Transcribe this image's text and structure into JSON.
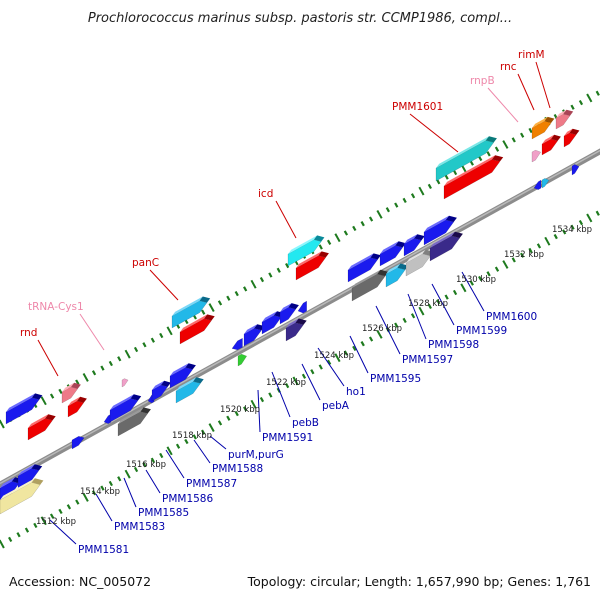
{
  "title": "Prochlorococcus marinus subsp. pastoris str. CCMP1986, compl...",
  "footer": {
    "accession": "Accession: NC_005072",
    "topology": "Topology: circular; Length: 1,657,990 bp; Genes: 1,761"
  },
  "colors": {
    "backbone": "#8c8c8c",
    "ticks": "#1e7a1e",
    "upper_label": "#cc0000",
    "upper_label_rna": "#ee88aa",
    "lower_label": "#0000aa"
  },
  "kbp_labels": [
    "1512 kbp",
    "1514 kbp",
    "1516 kbp",
    "1518 kbp",
    "1520 kbp",
    "1522 kbp",
    "1524 kbp",
    "1526 kbp",
    "1528 kbp",
    "1530 kbp",
    "1532 kbp",
    "1534 kbp"
  ],
  "upper_genes": [
    "rnd",
    "tRNA-Cys1",
    "panC",
    "icd",
    "PMM1601",
    "rnpB",
    "rnc",
    "rimM"
  ],
  "lower_genes": [
    "PMM1581",
    "PMM1583",
    "PMM1585",
    "PMM1586",
    "PMM1587",
    "PMM1588",
    "purM,purG",
    "PMM1591",
    "pebB",
    "pebA",
    "ho1",
    "PMM1595",
    "PMM1597",
    "PMM1598",
    "PMM1599",
    "PMM1600"
  ]
}
